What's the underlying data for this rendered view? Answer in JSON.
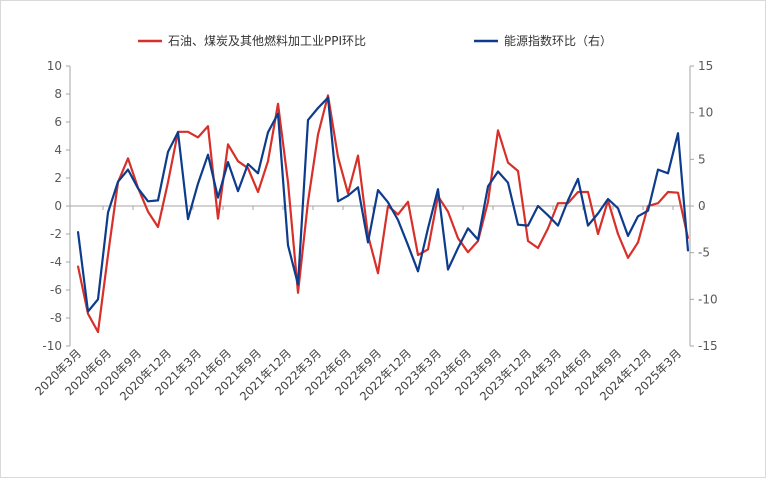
{
  "chart_data": {
    "type": "line",
    "title": "",
    "legend_position": "top",
    "x": [
      "2020-03",
      "2020-04",
      "2020-05",
      "2020-06",
      "2020-07",
      "2020-08",
      "2020-09",
      "2020-10",
      "2020-11",
      "2020-12",
      "2021-01",
      "2021-02",
      "2021-03",
      "2021-04",
      "2021-05",
      "2021-06",
      "2021-07",
      "2021-08",
      "2021-09",
      "2021-10",
      "2021-11",
      "2021-12",
      "2022-01",
      "2022-02",
      "2022-03",
      "2022-04",
      "2022-05",
      "2022-06",
      "2022-07",
      "2022-08",
      "2022-09",
      "2022-10",
      "2022-11",
      "2022-12",
      "2023-01",
      "2023-02",
      "2023-03",
      "2023-04",
      "2023-05",
      "2023-06",
      "2023-07",
      "2023-08",
      "2023-09",
      "2023-10",
      "2023-11",
      "2023-12",
      "2024-01",
      "2024-02",
      "2024-03",
      "2024-04",
      "2024-05",
      "2024-06",
      "2024-07",
      "2024-08",
      "2024-09",
      "2024-10",
      "2024-11",
      "2024-12",
      "2025-01",
      "2025-02",
      "2025-03",
      "2025-04"
    ],
    "tick_labels": [
      "2020年3月",
      "2020年6月",
      "2020年9月",
      "2020年12月",
      "2021年3月",
      "2021年6月",
      "2021年9月",
      "2021年12月",
      "2022年3月",
      "2022年6月",
      "2022年9月",
      "2022年12月",
      "2023年3月",
      "2023年6月",
      "2023年9月",
      "2023年12月",
      "2024年3月",
      "2024年6月",
      "2024年9月",
      "2024年12月",
      "2025年3月"
    ],
    "y_left": {
      "ylim": [
        -10,
        10
      ],
      "ticks": [
        "10",
        "8",
        "6",
        "4",
        "2",
        "0",
        "-2",
        "-4",
        "-6",
        "-8",
        "-10"
      ]
    },
    "y_right": {
      "ylim": [
        -15,
        15
      ],
      "ticks": [
        "15",
        "10",
        "5",
        "0",
        "-5",
        "-10",
        "-15"
      ]
    },
    "series": [
      {
        "name": "石油、煤炭及其他燃料加工业PPI环比",
        "axis": "left",
        "color": "#d7302a",
        "values": [
          -4.3,
          -7.7,
          -9.0,
          -3.5,
          1.7,
          3.4,
          1.3,
          -0.4,
          -1.5,
          1.7,
          5.3,
          5.3,
          4.9,
          5.7,
          -0.9,
          4.4,
          3.2,
          2.7,
          1.0,
          3.2,
          7.3,
          1.7,
          -6.2,
          0.3,
          5.1,
          7.9,
          3.5,
          0.9,
          3.6,
          -2.1,
          -4.8,
          0.0,
          -0.6,
          0.3,
          -3.5,
          -3.1,
          0.7,
          -0.4,
          -2.3,
          -3.3,
          -2.5,
          0.3,
          5.4,
          3.1,
          2.5,
          -2.5,
          -3.0,
          -1.6,
          0.2,
          0.2,
          1.0,
          1.0,
          -2.0,
          0.4,
          -2.0,
          -3.7,
          -2.6,
          0.0,
          0.2,
          1.0,
          0.95,
          -2.3
        ]
      },
      {
        "name": "能源指数环比（右）",
        "axis": "right",
        "color": "#0d3c8c",
        "values": [
          -2.75,
          -11.3,
          -10.0,
          -0.7,
          2.6,
          3.9,
          1.9,
          0.5,
          0.6,
          5.8,
          7.9,
          -1.4,
          2.4,
          5.5,
          0.9,
          4.7,
          1.6,
          4.5,
          3.5,
          7.9,
          9.9,
          -4.2,
          -8.4,
          9.2,
          10.5,
          11.6,
          0.5,
          1.1,
          2.0,
          -3.9,
          1.7,
          0.4,
          -1.5,
          -4.2,
          -7.0,
          -2.4,
          1.8,
          -6.8,
          -4.5,
          -2.4,
          -3.6,
          2.1,
          3.7,
          2.5,
          -2.0,
          -2.1,
          0.0,
          -1.0,
          -2.1,
          0.6,
          2.9,
          -2.1,
          -0.8,
          0.75,
          -0.25,
          -3.2,
          -1.1,
          -0.5,
          3.9,
          3.5,
          7.8,
          -4.8
        ]
      }
    ]
  }
}
